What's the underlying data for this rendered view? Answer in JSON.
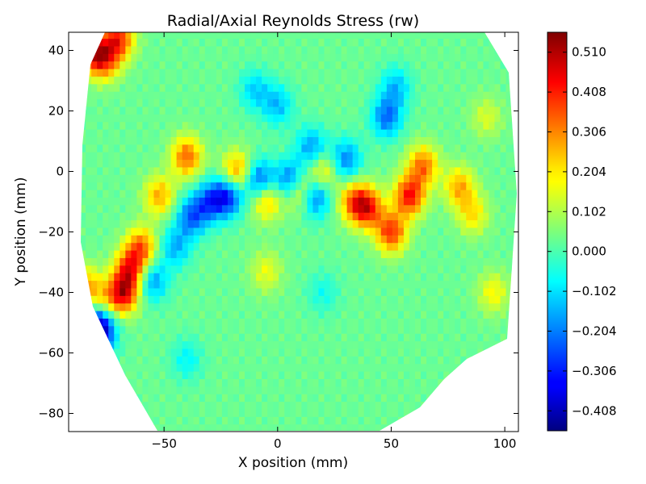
{
  "chart_data": {
    "type": "heatmap",
    "title": "Radial/Axial Reynolds Stress (rw)",
    "xlabel": "X position (mm)",
    "ylabel": "Y position (mm)",
    "xlim": [
      -92,
      106
    ],
    "ylim": [
      -86,
      46
    ],
    "xticks": [
      -50,
      0,
      50,
      100
    ],
    "xtick_labels": [
      "−50",
      "0",
      "50",
      "100"
    ],
    "yticks": [
      40,
      20,
      0,
      -20,
      -40,
      -60,
      -80
    ],
    "ytick_labels": [
      "40",
      "20",
      "0",
      "−20",
      "−40",
      "−60",
      "−80"
    ],
    "colormap": "jet",
    "clim": [
      -0.459,
      0.561
    ],
    "colorbar_ticks": [
      0.51,
      0.408,
      0.306,
      0.204,
      0.102,
      0.0,
      -0.102,
      -0.204,
      -0.306,
      -0.408
    ],
    "colorbar_tick_labels": [
      "0.510",
      "0.408",
      "0.306",
      "0.204",
      "0.102",
      "0.000",
      "−0.102",
      "−0.204",
      "−0.306",
      "−0.408"
    ],
    "grid": false,
    "background_value": 0.03,
    "features": [
      {
        "x": -40,
        "y": 5,
        "value": 0.33
      },
      {
        "x": -52,
        "y": -8,
        "value": 0.26
      },
      {
        "x": -60,
        "y": -25,
        "value": 0.32
      },
      {
        "x": -65,
        "y": -32,
        "value": 0.36
      },
      {
        "x": -68,
        "y": -40,
        "value": 0.44
      },
      {
        "x": -76,
        "y": -44,
        "value": 0.2
      },
      {
        "x": -78,
        "y": -50,
        "value": -0.36
      },
      {
        "x": -80,
        "y": -57,
        "value": -0.3
      },
      {
        "x": -76,
        "y": 37,
        "value": 0.32
      },
      {
        "x": -82,
        "y": 40,
        "value": 0.38
      },
      {
        "x": -70,
        "y": 44,
        "value": 0.38
      },
      {
        "x": -84,
        "y": -38,
        "value": 0.26
      },
      {
        "x": -55,
        "y": -36,
        "value": -0.18
      },
      {
        "x": -45,
        "y": -25,
        "value": -0.15
      },
      {
        "x": -38,
        "y": -15,
        "value": -0.22
      },
      {
        "x": -30,
        "y": -10,
        "value": -0.22
      },
      {
        "x": -22,
        "y": -8,
        "value": -0.3
      },
      {
        "x": -10,
        "y": 27,
        "value": -0.12
      },
      {
        "x": 0,
        "y": 22,
        "value": -0.14
      },
      {
        "x": 15,
        "y": 8,
        "value": -0.18
      },
      {
        "x": 30,
        "y": 4,
        "value": -0.2
      },
      {
        "x": 48,
        "y": 18,
        "value": -0.22
      },
      {
        "x": 52,
        "y": 28,
        "value": -0.14
      },
      {
        "x": -8,
        "y": -3,
        "value": -0.28
      },
      {
        "x": 6,
        "y": -3,
        "value": -0.3
      },
      {
        "x": 16,
        "y": -8,
        "value": -0.28
      },
      {
        "x": -18,
        "y": 0,
        "value": 0.3
      },
      {
        "x": -5,
        "y": -9,
        "value": 0.28
      },
      {
        "x": 10,
        "y": -6,
        "value": 0.36
      },
      {
        "x": 20,
        "y": 0,
        "value": 0.22
      },
      {
        "x": 34,
        "y": -10,
        "value": 0.32
      },
      {
        "x": 40,
        "y": -12,
        "value": 0.36
      },
      {
        "x": 50,
        "y": -20,
        "value": 0.38
      },
      {
        "x": 58,
        "y": -8,
        "value": 0.42
      },
      {
        "x": 64,
        "y": 2,
        "value": 0.32
      },
      {
        "x": 80,
        "y": -5,
        "value": 0.26
      },
      {
        "x": 86,
        "y": -14,
        "value": 0.2
      },
      {
        "x": 92,
        "y": 18,
        "value": 0.14
      },
      {
        "x": -5,
        "y": -33,
        "value": 0.16
      },
      {
        "x": 20,
        "y": -40,
        "value": -0.06
      },
      {
        "x": -40,
        "y": -62,
        "value": -0.08
      },
      {
        "x": 95,
        "y": -40,
        "value": 0.18
      }
    ]
  }
}
